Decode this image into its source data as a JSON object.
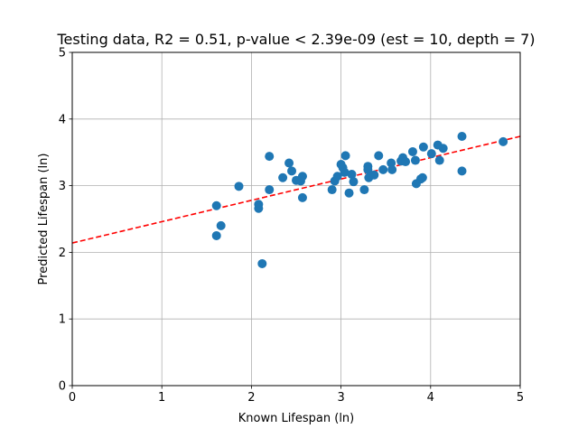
{
  "chart_data": {
    "type": "scatter",
    "title": "Testing data, R2 = 0.51, p-value < 2.39e-09 (est = 10, depth = 7)",
    "xlabel": "Known Lifespan (ln)",
    "ylabel": "Predicted Lifespan (ln)",
    "xlim": [
      0,
      5
    ],
    "ylim": [
      0,
      5
    ],
    "xticks": [
      "0",
      "1",
      "2",
      "3",
      "4",
      "5"
    ],
    "yticks": [
      "0",
      "1",
      "2",
      "3",
      "4",
      "5"
    ],
    "grid": true,
    "colors": {
      "points": "#1f77b4",
      "fit_line": "#ff0000",
      "grid": "#b0b0b0"
    },
    "fit_line": {
      "style": "dashed",
      "intercept": 2.14,
      "slope": 0.32
    },
    "points": [
      {
        "x": 1.61,
        "y": 2.7
      },
      {
        "x": 1.61,
        "y": 2.25
      },
      {
        "x": 1.66,
        "y": 2.4
      },
      {
        "x": 1.86,
        "y": 2.99
      },
      {
        "x": 2.08,
        "y": 2.72
      },
      {
        "x": 2.08,
        "y": 2.66
      },
      {
        "x": 2.12,
        "y": 1.83
      },
      {
        "x": 2.2,
        "y": 3.44
      },
      {
        "x": 2.2,
        "y": 2.94
      },
      {
        "x": 2.35,
        "y": 3.12
      },
      {
        "x": 2.42,
        "y": 3.34
      },
      {
        "x": 2.45,
        "y": 3.22
      },
      {
        "x": 2.5,
        "y": 3.08
      },
      {
        "x": 2.55,
        "y": 3.07
      },
      {
        "x": 2.57,
        "y": 3.14
      },
      {
        "x": 2.57,
        "y": 2.82
      },
      {
        "x": 2.9,
        "y": 2.94
      },
      {
        "x": 2.93,
        "y": 3.07
      },
      {
        "x": 2.96,
        "y": 3.14
      },
      {
        "x": 3.0,
        "y": 3.32
      },
      {
        "x": 3.02,
        "y": 3.27
      },
      {
        "x": 3.04,
        "y": 3.2
      },
      {
        "x": 3.05,
        "y": 3.45
      },
      {
        "x": 3.09,
        "y": 2.89
      },
      {
        "x": 3.12,
        "y": 3.17
      },
      {
        "x": 3.14,
        "y": 3.06
      },
      {
        "x": 3.26,
        "y": 2.94
      },
      {
        "x": 3.3,
        "y": 3.29
      },
      {
        "x": 3.3,
        "y": 3.24
      },
      {
        "x": 3.31,
        "y": 3.12
      },
      {
        "x": 3.37,
        "y": 3.16
      },
      {
        "x": 3.42,
        "y": 3.45
      },
      {
        "x": 3.47,
        "y": 3.24
      },
      {
        "x": 3.56,
        "y": 3.34
      },
      {
        "x": 3.57,
        "y": 3.24
      },
      {
        "x": 3.67,
        "y": 3.37
      },
      {
        "x": 3.69,
        "y": 3.42
      },
      {
        "x": 3.72,
        "y": 3.36
      },
      {
        "x": 3.8,
        "y": 3.51
      },
      {
        "x": 3.83,
        "y": 3.38
      },
      {
        "x": 3.84,
        "y": 3.03
      },
      {
        "x": 3.89,
        "y": 3.1
      },
      {
        "x": 3.91,
        "y": 3.12
      },
      {
        "x": 3.92,
        "y": 3.58
      },
      {
        "x": 4.01,
        "y": 3.48
      },
      {
        "x": 4.08,
        "y": 3.61
      },
      {
        "x": 4.1,
        "y": 3.38
      },
      {
        "x": 4.14,
        "y": 3.56
      },
      {
        "x": 4.35,
        "y": 3.74
      },
      {
        "x": 4.35,
        "y": 3.22
      },
      {
        "x": 4.81,
        "y": 3.66
      }
    ]
  }
}
